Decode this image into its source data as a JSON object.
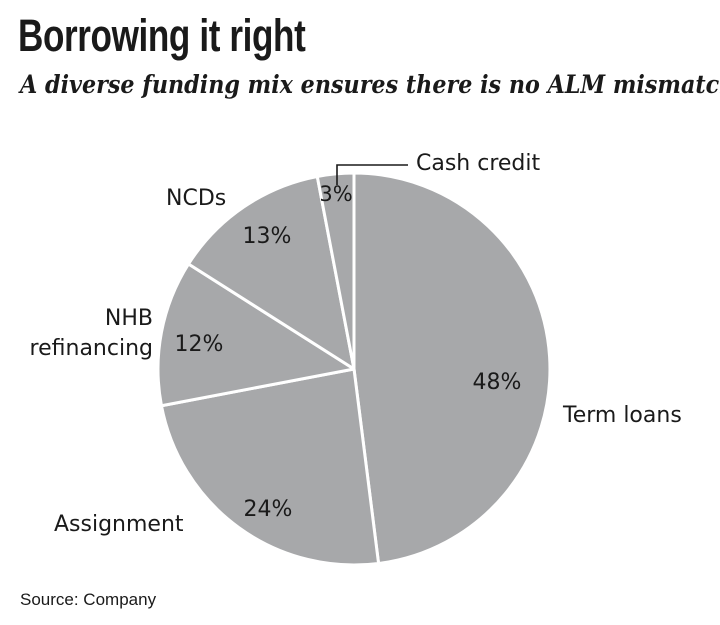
{
  "title": "Borrowing it right",
  "subtitle": "A diverse funding mix ensures there is no ALM mismatch",
  "source": "Source: Company",
  "chart_data": {
    "type": "pie",
    "slices": [
      {
        "label": "Term loans",
        "value": 48,
        "value_label": "48%"
      },
      {
        "label": "Assignment",
        "value": 24,
        "value_label": "24%"
      },
      {
        "label": "NHB refinancing",
        "value": 12,
        "value_label": "12%"
      },
      {
        "label": "NCDs",
        "value": 13,
        "value_label": "13%"
      },
      {
        "label": "Cash credit",
        "value": 3,
        "value_label": "3%"
      }
    ],
    "slice_color": "#a7a8aa",
    "border_color": "#ffffff"
  }
}
